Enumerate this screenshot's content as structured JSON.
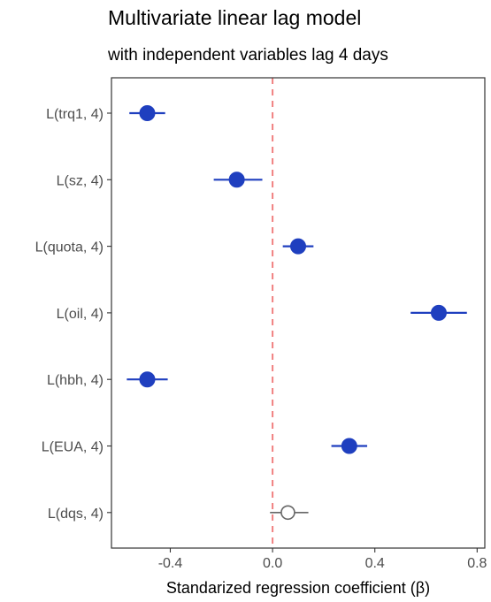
{
  "chart_data": {
    "type": "scatter",
    "subtype": "coefficient-plot",
    "title": "Multivariate linear lag model",
    "subtitle": "with independent variables lag 4 days",
    "xlabel": "Standarized regression coefficient (β)",
    "ylabel": "",
    "xlim": [
      -0.63,
      0.83
    ],
    "xticks": [
      -0.4,
      0.0,
      0.4,
      0.8
    ],
    "xtick_labels": [
      "-0.4",
      "0.0",
      "0.4",
      "0.8"
    ],
    "grid": false,
    "reference_line": {
      "x": 0.0,
      "style": "dashed",
      "color": "#f08080"
    },
    "colors": {
      "significant": "#1f3fbf",
      "not_significant": "#666666",
      "reference": "#f08080",
      "axis": "#333333",
      "tick_label": "#4d4d4d"
    },
    "categories": [
      "L(trq1, 4)",
      "L(sz, 4)",
      "L(quota, 4)",
      "L(oil, 4)",
      "L(hbh, 4)",
      "L(EUA, 4)",
      "L(dqs, 4)"
    ],
    "points": [
      {
        "label": "L(trq1, 4)",
        "estimate": -0.49,
        "ci": [
          -0.56,
          -0.42
        ],
        "significant": true
      },
      {
        "label": "L(sz, 4)",
        "estimate": -0.14,
        "ci": [
          -0.23,
          -0.04
        ],
        "significant": true
      },
      {
        "label": "L(quota, 4)",
        "estimate": 0.1,
        "ci": [
          0.04,
          0.16
        ],
        "significant": true
      },
      {
        "label": "L(oil, 4)",
        "estimate": 0.65,
        "ci": [
          0.54,
          0.76
        ],
        "significant": true
      },
      {
        "label": "L(hbh, 4)",
        "estimate": -0.49,
        "ci": [
          -0.57,
          -0.41
        ],
        "significant": true
      },
      {
        "label": "L(EUA, 4)",
        "estimate": 0.3,
        "ci": [
          0.23,
          0.37
        ],
        "significant": true
      },
      {
        "label": "L(dqs, 4)",
        "estimate": 0.06,
        "ci": [
          -0.01,
          0.14
        ],
        "significant": false
      }
    ]
  }
}
